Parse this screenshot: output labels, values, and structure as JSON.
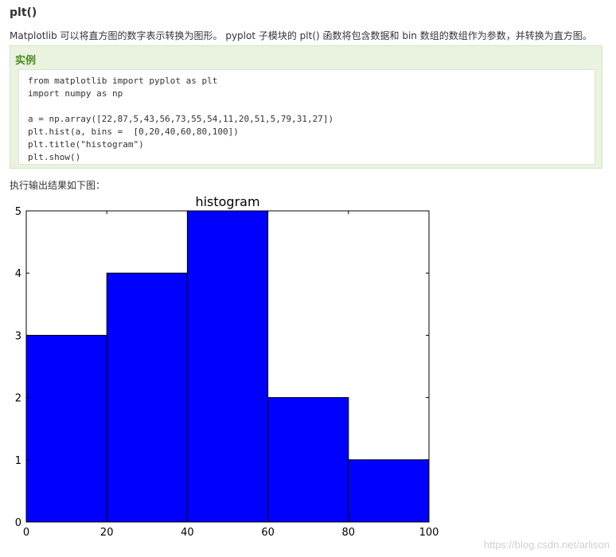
{
  "section_title": "plt()",
  "description": "Matplotlib 可以将直方图的数字表示转换为图形。 pyplot 子模块的 plt() 函数将包含数据和 bin 数组的数组作为参数，并转换为直方图。",
  "example": {
    "title": "实例",
    "code_lines": [
      "from matplotlib import pyplot as plt",
      "import numpy as np",
      "",
      "a = np.array([22,87,5,43,56,73,55,54,11,20,51,5,79,31,27])",
      "plt.hist(a, bins =  [0,20,40,60,80,100])",
      "plt.title(\"histogram\")",
      "plt.show()"
    ]
  },
  "output_label": "执行输出结果如下图：",
  "watermark": "https://blog.csdn.net/arlison",
  "chart_data": {
    "type": "bar",
    "title": "histogram",
    "bin_edges": [
      0,
      20,
      40,
      60,
      80,
      100
    ],
    "values": [
      3,
      4,
      5,
      2,
      1
    ],
    "xlim": [
      0,
      100
    ],
    "ylim": [
      0,
      5
    ],
    "x_ticks": [
      0,
      20,
      40,
      60,
      80,
      100
    ],
    "y_ticks": [
      0,
      1,
      2,
      3,
      4,
      5
    ],
    "bar_color": "#0000ff",
    "grid": false
  }
}
